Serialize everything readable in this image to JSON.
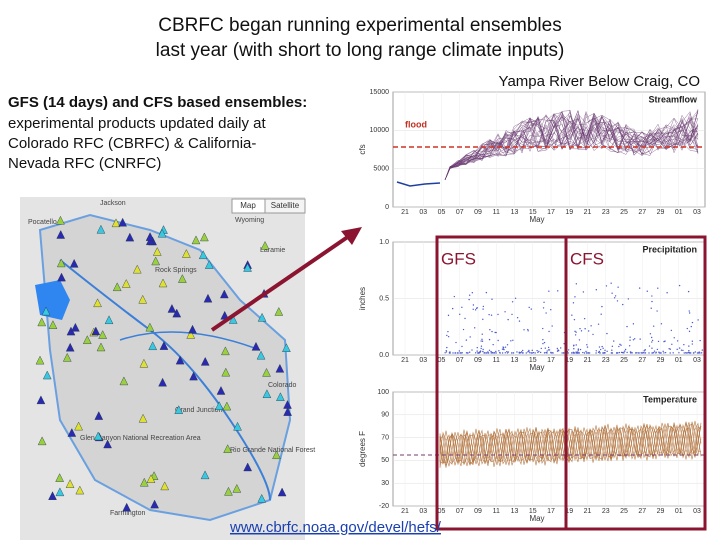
{
  "title": {
    "lines": [
      "CBRFC began running experimental ensembles",
      "last year (with short to long range climate inputs)"
    ]
  },
  "description": {
    "heading": "GFS (14 days) and CFS based ensembles:",
    "lines": [
      "experimental products updated daily at",
      "Colorado RFC (CBRFC) & California-",
      "Nevada RFC (CNRFC)"
    ]
  },
  "location": "Yampa River Below Craig, CO",
  "map": {
    "buttons": [
      "Map",
      "Satellite"
    ],
    "labels": [
      "Jackson",
      "Pocatello",
      "Wyoming",
      "Rock Springs",
      "Laramie",
      "Grand Junction",
      "Glen Canyon National Recreation Area",
      "Rio Grande National Forest",
      "Colorado",
      "Farmington"
    ]
  },
  "panels": {
    "streamflow": {
      "title": "Streamflow",
      "ylabel": "cfs",
      "yticks": [
        "15000",
        "10000",
        "5000",
        "0"
      ],
      "flood": "flood"
    },
    "precipitation": {
      "title": "Precipitation",
      "ylabel": "inches",
      "yticks": [
        "1.0",
        "0.5",
        "0.0"
      ]
    },
    "temperature": {
      "title": "Temperature",
      "ylabel": "degrees F",
      "yticks": [
        "100",
        "90",
        "70",
        "50",
        "30",
        "-20"
      ]
    },
    "xticks": [
      "21",
      "03",
      "05",
      "07",
      "09",
      "11",
      "13",
      "15",
      "17",
      "19",
      "21",
      "23",
      "25",
      "27",
      "29",
      "01",
      "03"
    ],
    "xlabel": "May"
  },
  "boxes": [
    "GFS",
    "CFS"
  ],
  "link": "www.cbrfc.noaa.gov/devel/hefs/"
}
